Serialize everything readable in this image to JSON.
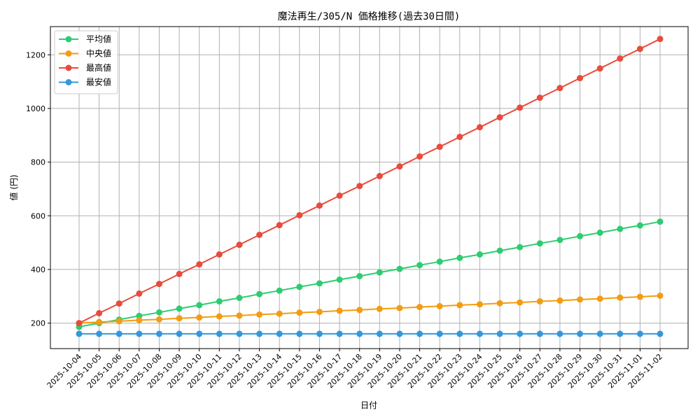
{
  "chart_data": {
    "type": "line",
    "title": "魔法再生/305/N 価格推移(過去30日間)",
    "xlabel": "日付",
    "ylabel": "値 (円)",
    "ylim": [
      105,
      1305
    ],
    "yticks": [
      200,
      400,
      600,
      800,
      1000,
      1200
    ],
    "grid": true,
    "legend_position": "top-left",
    "categories": [
      "2025-10-04",
      "2025-10-05",
      "2025-10-06",
      "2025-10-07",
      "2025-10-08",
      "2025-10-09",
      "2025-10-10",
      "2025-10-11",
      "2025-10-12",
      "2025-10-13",
      "2025-10-14",
      "2025-10-15",
      "2025-10-16",
      "2025-10-17",
      "2025-10-18",
      "2025-10-19",
      "2025-10-20",
      "2025-10-21",
      "2025-10-22",
      "2025-10-23",
      "2025-10-24",
      "2025-10-25",
      "2025-10-26",
      "2025-10-27",
      "2025-10-28",
      "2025-10-29",
      "2025-10-30",
      "2025-10-31",
      "2025-11-01",
      "2025-11-02"
    ],
    "series": [
      {
        "name": "平均値",
        "color": "#2ecc71",
        "values": [
          186,
          200,
          213,
          227,
          240,
          254,
          267,
          281,
          294,
          308,
          321,
          335,
          348,
          362,
          375,
          389,
          402,
          416,
          429,
          443,
          456,
          470,
          483,
          497,
          510,
          524,
          537,
          551,
          564,
          578
        ]
      },
      {
        "name": "中央値",
        "color": "#f39c12",
        "values": [
          200,
          204,
          207,
          211,
          214,
          218,
          221,
          225,
          228,
          232,
          235,
          239,
          242,
          246,
          249,
          253,
          256,
          260,
          263,
          267,
          270,
          274,
          277,
          281,
          284,
          288,
          291,
          295,
          298,
          302
        ]
      },
      {
        "name": "最高値",
        "color": "#e74c3c",
        "values": [
          200,
          237,
          273,
          310,
          346,
          383,
          419,
          456,
          492,
          529,
          565,
          602,
          638,
          675,
          711,
          748,
          784,
          821,
          857,
          894,
          930,
          967,
          1003,
          1040,
          1076,
          1113,
          1149,
          1186,
          1222,
          1259
        ]
      },
      {
        "name": "最安値",
        "color": "#3498db",
        "values": [
          160,
          160,
          160,
          160,
          160,
          160,
          160,
          160,
          160,
          160,
          160,
          160,
          160,
          160,
          160,
          160,
          160,
          160,
          160,
          160,
          160,
          160,
          160,
          160,
          160,
          160,
          160,
          160,
          160,
          160
        ]
      }
    ]
  }
}
